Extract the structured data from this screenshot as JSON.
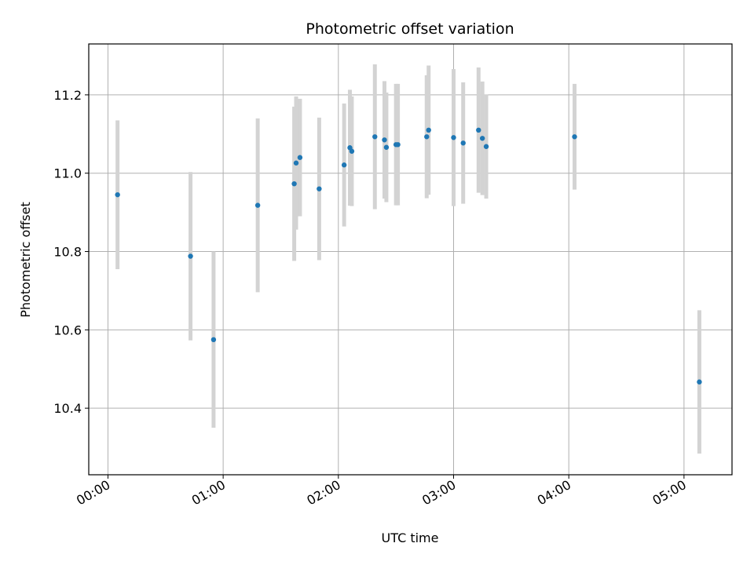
{
  "chart_data": {
    "type": "scatter",
    "title": "Photometric offset variation",
    "xlabel": "UTC time",
    "ylabel": "Photometric offset",
    "x_unit": "HH:MM",
    "xlim": [
      "-00:10",
      "05:25"
    ],
    "ylim": [
      10.23,
      11.33
    ],
    "xticks": [
      "00:00",
      "01:00",
      "02:00",
      "03:00",
      "04:00",
      "05:00"
    ],
    "yticks": [
      10.4,
      10.6,
      10.8,
      11.0,
      11.2
    ],
    "grid": true,
    "colors": {
      "point": "#1f77b4",
      "errorbar": "#d3d3d3",
      "grid": "#b0b0b0"
    },
    "series": [
      {
        "points": [
          {
            "x": "00:05",
            "y": 10.945,
            "err": 0.19
          },
          {
            "x": "00:43",
            "y": 10.788,
            "err": 0.215
          },
          {
            "x": "00:55",
            "y": 10.575,
            "err": 0.225
          },
          {
            "x": "01:18",
            "y": 10.918,
            "err": 0.222
          },
          {
            "x": "01:37",
            "y": 10.973,
            "err": 0.197
          },
          {
            "x": "01:38",
            "y": 11.026,
            "err": 0.17
          },
          {
            "x": "01:40",
            "y": 11.04,
            "err": 0.15
          },
          {
            "x": "01:50",
            "y": 10.96,
            "err": 0.182
          },
          {
            "x": "02:03",
            "y": 11.021,
            "err": 0.157
          },
          {
            "x": "02:06",
            "y": 11.065,
            "err": 0.148
          },
          {
            "x": "02:07",
            "y": 11.056,
            "err": 0.14
          },
          {
            "x": "02:19",
            "y": 11.093,
            "err": 0.185
          },
          {
            "x": "02:24",
            "y": 11.085,
            "err": 0.15
          },
          {
            "x": "02:25",
            "y": 11.066,
            "err": 0.14
          },
          {
            "x": "02:30",
            "y": 11.073,
            "err": 0.155
          },
          {
            "x": "02:31",
            "y": 11.073,
            "err": 0.155
          },
          {
            "x": "02:46",
            "y": 11.093,
            "err": 0.157
          },
          {
            "x": "02:47",
            "y": 11.11,
            "err": 0.165
          },
          {
            "x": "03:00",
            "y": 11.091,
            "err": 0.175
          },
          {
            "x": "03:05",
            "y": 11.077,
            "err": 0.155
          },
          {
            "x": "03:13",
            "y": 11.11,
            "err": 0.16
          },
          {
            "x": "03:15",
            "y": 11.089,
            "err": 0.145
          },
          {
            "x": "03:17",
            "y": 11.068,
            "err": 0.133
          },
          {
            "x": "04:03",
            "y": 11.093,
            "err": 0.135
          },
          {
            "x": "05:08",
            "y": 10.467,
            "err": 0.183
          }
        ]
      }
    ]
  }
}
